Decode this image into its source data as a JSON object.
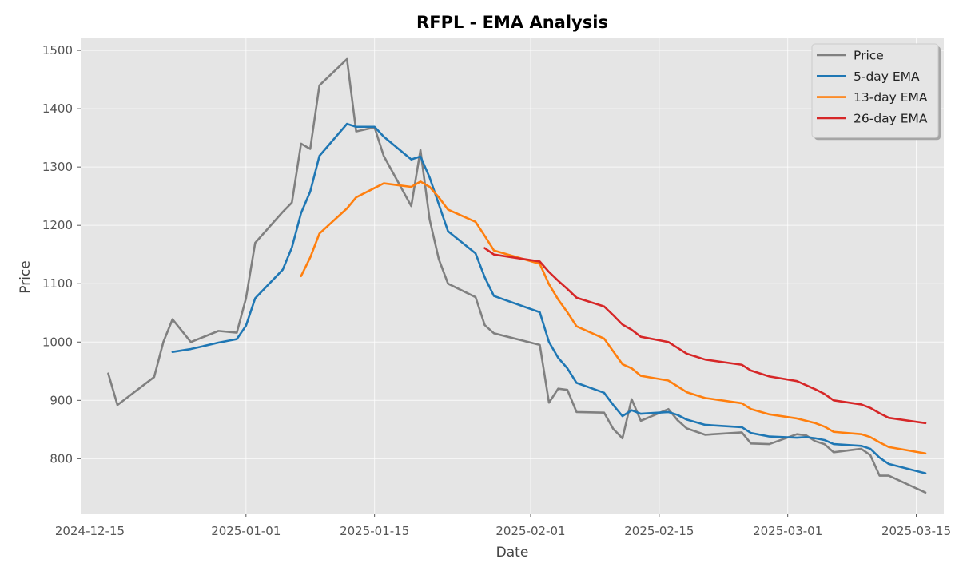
{
  "chart_data": {
    "type": "line",
    "title": "RFPL - EMA Analysis",
    "xlabel": "Date",
    "ylabel": "Price",
    "x_is_date": true,
    "xlim": [
      "2024-12-14",
      "2025-03-18"
    ],
    "ylim": [
      706,
      1522
    ],
    "x_ticks": [
      "2024-12-15",
      "2025-01-01",
      "2025-01-15",
      "2025-02-01",
      "2025-02-15",
      "2025-03-01",
      "2025-03-15"
    ],
    "y_ticks": [
      800,
      900,
      1000,
      1100,
      1200,
      1300,
      1400,
      1500
    ],
    "grid": true,
    "legend_position": "top-right",
    "colors": {
      "background": "#e5e5e5",
      "Price": "#808080",
      "5-day EMA": "#1f77b4",
      "13-day EMA": "#ff7f0e",
      "26-day EMA": "#d62728"
    },
    "series": [
      {
        "name": "Price",
        "points": [
          [
            "2024-12-17",
            946
          ],
          [
            "2024-12-18",
            892
          ],
          [
            "2024-12-22",
            940
          ],
          [
            "2024-12-23",
            1000
          ],
          [
            "2024-12-24",
            1039
          ],
          [
            "2024-12-26",
            1000
          ],
          [
            "2024-12-29",
            1019
          ],
          [
            "2024-12-31",
            1016
          ],
          [
            "2025-01-01",
            1075
          ],
          [
            "2025-01-02",
            1170
          ],
          [
            "2025-01-05",
            1223
          ],
          [
            "2025-01-06",
            1239
          ],
          [
            "2025-01-07",
            1340
          ],
          [
            "2025-01-08",
            1331
          ],
          [
            "2025-01-09",
            1440
          ],
          [
            "2025-01-12",
            1485
          ],
          [
            "2025-01-13",
            1361
          ],
          [
            "2025-01-15",
            1368
          ],
          [
            "2025-01-16",
            1319
          ],
          [
            "2025-01-19",
            1233
          ],
          [
            "2025-01-20",
            1329
          ],
          [
            "2025-01-21",
            1210
          ],
          [
            "2025-01-22",
            1142
          ],
          [
            "2025-01-23",
            1100
          ],
          [
            "2025-01-26",
            1077
          ],
          [
            "2025-01-27",
            1029
          ],
          [
            "2025-01-28",
            1015
          ],
          [
            "2025-02-02",
            995
          ],
          [
            "2025-02-03",
            896
          ],
          [
            "2025-02-04",
            920
          ],
          [
            "2025-02-05",
            918
          ],
          [
            "2025-02-06",
            880
          ],
          [
            "2025-02-09",
            879
          ],
          [
            "2025-02-10",
            851
          ],
          [
            "2025-02-11",
            835
          ],
          [
            "2025-02-12",
            902
          ],
          [
            "2025-02-13",
            865
          ],
          [
            "2025-02-16",
            885
          ],
          [
            "2025-02-17",
            866
          ],
          [
            "2025-02-18",
            852
          ],
          [
            "2025-02-20",
            841
          ],
          [
            "2025-02-24",
            845
          ],
          [
            "2025-02-25",
            826
          ],
          [
            "2025-02-27",
            825
          ],
          [
            "2025-03-02",
            842
          ],
          [
            "2025-03-03",
            840
          ],
          [
            "2025-03-04",
            830
          ],
          [
            "2025-03-05",
            825
          ],
          [
            "2025-03-06",
            811
          ],
          [
            "2025-03-09",
            817
          ],
          [
            "2025-03-10",
            806
          ],
          [
            "2025-03-11",
            771
          ],
          [
            "2025-03-12",
            771
          ],
          [
            "2025-03-16",
            742
          ]
        ]
      },
      {
        "name": "5-day EMA",
        "points": [
          [
            "2024-12-24",
            983
          ],
          [
            "2024-12-26",
            988
          ],
          [
            "2024-12-29",
            999
          ],
          [
            "2024-12-31",
            1005
          ],
          [
            "2025-01-01",
            1028
          ],
          [
            "2025-01-02",
            1075
          ],
          [
            "2025-01-05",
            1124
          ],
          [
            "2025-01-06",
            1162
          ],
          [
            "2025-01-07",
            1221
          ],
          [
            "2025-01-08",
            1258
          ],
          [
            "2025-01-09",
            1319
          ],
          [
            "2025-01-12",
            1374
          ],
          [
            "2025-01-13",
            1369
          ],
          [
            "2025-01-15",
            1369
          ],
          [
            "2025-01-16",
            1352
          ],
          [
            "2025-01-19",
            1313
          ],
          [
            "2025-01-20",
            1318
          ],
          [
            "2025-01-21",
            1282
          ],
          [
            "2025-01-22",
            1236
          ],
          [
            "2025-01-23",
            1190
          ],
          [
            "2025-01-26",
            1152
          ],
          [
            "2025-01-27",
            1111
          ],
          [
            "2025-01-28",
            1079
          ],
          [
            "2025-02-02",
            1051
          ],
          [
            "2025-02-03",
            1000
          ],
          [
            "2025-02-04",
            973
          ],
          [
            "2025-02-05",
            955
          ],
          [
            "2025-02-06",
            930
          ],
          [
            "2025-02-09",
            913
          ],
          [
            "2025-02-10",
            892
          ],
          [
            "2025-02-11",
            873
          ],
          [
            "2025-02-12",
            883
          ],
          [
            "2025-02-13",
            877
          ],
          [
            "2025-02-16",
            880
          ],
          [
            "2025-02-17",
            875
          ],
          [
            "2025-02-18",
            867
          ],
          [
            "2025-02-20",
            858
          ],
          [
            "2025-02-24",
            854
          ],
          [
            "2025-02-25",
            844
          ],
          [
            "2025-02-27",
            838
          ],
          [
            "2025-03-02",
            836
          ],
          [
            "2025-03-03",
            837
          ],
          [
            "2025-03-04",
            835
          ],
          [
            "2025-03-05",
            832
          ],
          [
            "2025-03-06",
            825
          ],
          [
            "2025-03-09",
            822
          ],
          [
            "2025-03-10",
            817
          ],
          [
            "2025-03-11",
            802
          ],
          [
            "2025-03-12",
            791
          ],
          [
            "2025-03-16",
            775
          ]
        ]
      },
      {
        "name": "13-day EMA",
        "points": [
          [
            "2025-01-07",
            1113
          ],
          [
            "2025-01-08",
            1145
          ],
          [
            "2025-01-09",
            1186
          ],
          [
            "2025-01-12",
            1229
          ],
          [
            "2025-01-13",
            1248
          ],
          [
            "2025-01-15",
            1264
          ],
          [
            "2025-01-16",
            1272
          ],
          [
            "2025-01-19",
            1266
          ],
          [
            "2025-01-20",
            1275
          ],
          [
            "2025-01-21",
            1266
          ],
          [
            "2025-01-22",
            1248
          ],
          [
            "2025-01-23",
            1227
          ],
          [
            "2025-01-26",
            1206
          ],
          [
            "2025-01-27",
            1182
          ],
          [
            "2025-01-28",
            1157
          ],
          [
            "2025-02-02",
            1134
          ],
          [
            "2025-02-03",
            1099
          ],
          [
            "2025-02-04",
            1073
          ],
          [
            "2025-02-05",
            1051
          ],
          [
            "2025-02-06",
            1027
          ],
          [
            "2025-02-09",
            1006
          ],
          [
            "2025-02-10",
            984
          ],
          [
            "2025-02-11",
            962
          ],
          [
            "2025-02-12",
            955
          ],
          [
            "2025-02-13",
            942
          ],
          [
            "2025-02-16",
            934
          ],
          [
            "2025-02-17",
            924
          ],
          [
            "2025-02-18",
            914
          ],
          [
            "2025-02-20",
            904
          ],
          [
            "2025-02-24",
            895
          ],
          [
            "2025-02-25",
            885
          ],
          [
            "2025-02-27",
            876
          ],
          [
            "2025-03-02",
            869
          ],
          [
            "2025-03-03",
            865
          ],
          [
            "2025-03-04",
            861
          ],
          [
            "2025-03-05",
            855
          ],
          [
            "2025-03-06",
            846
          ],
          [
            "2025-03-09",
            842
          ],
          [
            "2025-03-10",
            837
          ],
          [
            "2025-03-11",
            828
          ],
          [
            "2025-03-12",
            820
          ],
          [
            "2025-03-16",
            809
          ]
        ]
      },
      {
        "name": "26-day EMA",
        "points": [
          [
            "2025-01-27",
            1161
          ],
          [
            "2025-01-28",
            1150
          ],
          [
            "2025-02-02",
            1138
          ],
          [
            "2025-02-03",
            1120
          ],
          [
            "2025-02-04",
            1105
          ],
          [
            "2025-02-05",
            1091
          ],
          [
            "2025-02-06",
            1076
          ],
          [
            "2025-02-09",
            1061
          ],
          [
            "2025-02-10",
            1046
          ],
          [
            "2025-02-11",
            1030
          ],
          [
            "2025-02-12",
            1021
          ],
          [
            "2025-02-13",
            1009
          ],
          [
            "2025-02-16",
            1000
          ],
          [
            "2025-02-17",
            990
          ],
          [
            "2025-02-18",
            980
          ],
          [
            "2025-02-20",
            970
          ],
          [
            "2025-02-24",
            961
          ],
          [
            "2025-02-25",
            951
          ],
          [
            "2025-02-27",
            941
          ],
          [
            "2025-03-02",
            933
          ],
          [
            "2025-03-03",
            926
          ],
          [
            "2025-03-04",
            919
          ],
          [
            "2025-03-05",
            911
          ],
          [
            "2025-03-06",
            900
          ],
          [
            "2025-03-09",
            893
          ],
          [
            "2025-03-10",
            887
          ],
          [
            "2025-03-11",
            878
          ],
          [
            "2025-03-12",
            870
          ],
          [
            "2025-03-16",
            861
          ]
        ]
      }
    ]
  }
}
